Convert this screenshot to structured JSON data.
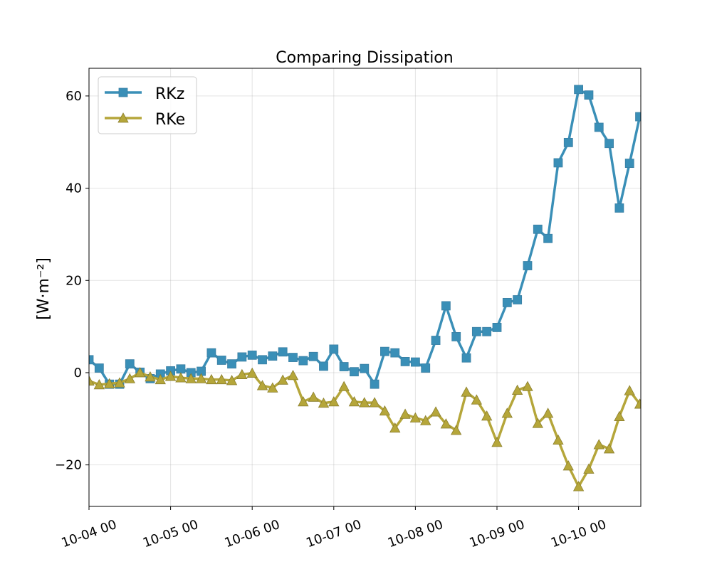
{
  "chart_data": {
    "type": "line",
    "title": "Comparing Dissipation",
    "xlabel": "",
    "ylabel": "[W·m⁻²]",
    "x_ticks": [
      "10-04 00",
      "10-05 00",
      "10-06 00",
      "10-07 00",
      "10-08 00",
      "10-09 00",
      "10-10 00"
    ],
    "x_range_days": [
      "10-04 00",
      "10-10 18"
    ],
    "ylim": [
      -29,
      66
    ],
    "y_ticks": [
      -20,
      0,
      20,
      40,
      60
    ],
    "y_tick_labels": [
      "−20",
      "0",
      "20",
      "40",
      "60"
    ],
    "grid": true,
    "legend_position": "top-left",
    "x": [
      "10-04 00",
      "10-04 03",
      "10-04 06",
      "10-04 09",
      "10-04 12",
      "10-04 15",
      "10-04 18",
      "10-04 21",
      "10-05 00",
      "10-05 03",
      "10-05 06",
      "10-05 09",
      "10-05 12",
      "10-05 15",
      "10-05 18",
      "10-05 21",
      "10-06 00",
      "10-06 03",
      "10-06 06",
      "10-06 09",
      "10-06 12",
      "10-06 15",
      "10-06 18",
      "10-06 21",
      "10-07 00",
      "10-07 03",
      "10-07 06",
      "10-07 09",
      "10-07 12",
      "10-07 15",
      "10-07 18",
      "10-07 21",
      "10-08 00",
      "10-08 03",
      "10-08 06",
      "10-08 09",
      "10-08 12",
      "10-08 15",
      "10-08 18",
      "10-08 21",
      "10-09 00",
      "10-09 03",
      "10-09 06",
      "10-09 09",
      "10-09 12",
      "10-09 15",
      "10-09 18",
      "10-09 21",
      "10-10 00",
      "10-10 03",
      "10-10 06",
      "10-10 09",
      "10-10 12",
      "10-10 15",
      "10-10 18"
    ],
    "series": [
      {
        "name": "RKz",
        "color": "#3a8fb7",
        "marker": "square",
        "values": [
          2.8,
          1.0,
          -2.5,
          -2.5,
          1.9,
          0.1,
          -1.3,
          -0.3,
          0.4,
          0.8,
          0.0,
          0.3,
          4.3,
          2.7,
          1.9,
          3.4,
          3.8,
          2.8,
          3.6,
          4.5,
          3.3,
          2.6,
          3.5,
          1.4,
          5.1,
          1.3,
          0.2,
          0.9,
          -2.5,
          4.6,
          4.3,
          2.4,
          2.3,
          1.0,
          7.0,
          14.5,
          7.8,
          3.2,
          8.9,
          8.9,
          9.8,
          15.2,
          15.8,
          23.2,
          31.1,
          29.1,
          45.5,
          49.9,
          61.4,
          60.2,
          53.2,
          49.7,
          35.7,
          45.4,
          55.5
        ]
      },
      {
        "name": "RKe",
        "color": "#b5a63a",
        "marker": "triangle",
        "values": [
          -1.8,
          -2.6,
          -2.4,
          -2.2,
          -1.3,
          0.0,
          -0.9,
          -1.5,
          -0.8,
          -1.1,
          -1.3,
          -1.3,
          -1.5,
          -1.5,
          -1.7,
          -0.4,
          -0.1,
          -2.8,
          -3.3,
          -1.6,
          -0.6,
          -6.3,
          -5.3,
          -6.6,
          -6.3,
          -3.0,
          -6.3,
          -6.5,
          -6.5,
          -8.3,
          -12.0,
          -9.0,
          -9.8,
          -10.4,
          -8.5,
          -11.1,
          -12.5,
          -4.2,
          -5.9,
          -9.4,
          -15.1,
          -8.8,
          -3.8,
          -3.0,
          -11.0,
          -8.8,
          -14.6,
          -20.2,
          -24.7,
          -20.9,
          -15.6,
          -16.5,
          -9.5,
          -3.9,
          -6.8
        ]
      }
    ]
  }
}
